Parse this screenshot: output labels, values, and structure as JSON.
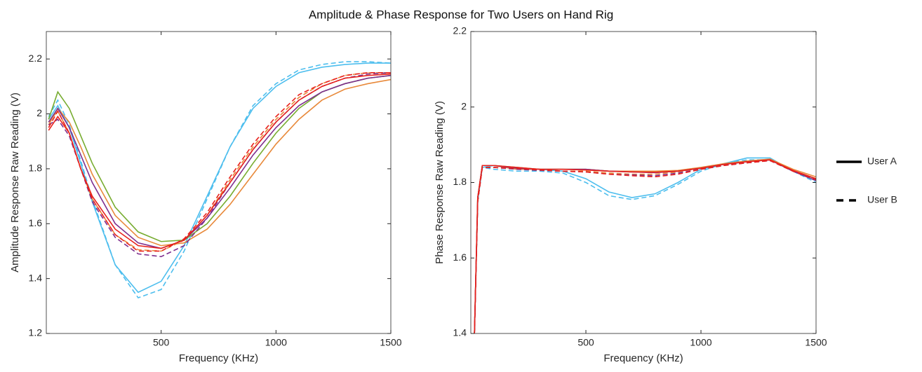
{
  "title": "Amplitude & Phase Response for Two Users on Hand Rig",
  "chart_data": [
    {
      "type": "line",
      "xlabel": "Frequency (KHz)",
      "ylabel": "Amplitude Response Raw Reading (V)",
      "xlim": [
        0,
        1500
      ],
      "ylim": [
        1.2,
        2.3
      ],
      "xticks": [
        500,
        1000,
        1500
      ],
      "yticks": [
        1.2,
        1.4,
        1.6,
        1.8,
        2,
        2.2
      ],
      "x": [
        10,
        50,
        100,
        150,
        200,
        300,
        400,
        500,
        600,
        700,
        800,
        900,
        1000,
        1100,
        1200,
        1300,
        1400,
        1500
      ],
      "series": [
        {
          "name": "User A",
          "dash": "solid",
          "color": "#4dbeee",
          "values": [
            1.98,
            2.03,
            1.95,
            1.82,
            1.68,
            1.45,
            1.35,
            1.39,
            1.52,
            1.7,
            1.88,
            2.02,
            2.1,
            2.15,
            2.17,
            2.18,
            2.185,
            2.185
          ]
        },
        {
          "name": "User B",
          "dash": "dashed",
          "color": "#4dbeee",
          "values": [
            1.99,
            2.05,
            1.96,
            1.83,
            1.69,
            1.45,
            1.33,
            1.36,
            1.5,
            1.69,
            1.88,
            2.03,
            2.11,
            2.16,
            2.18,
            2.19,
            2.19,
            2.185
          ]
        },
        {
          "name": "User A",
          "dash": "solid",
          "color": "#77ac30",
          "values": [
            1.98,
            2.08,
            2.02,
            1.92,
            1.82,
            1.66,
            1.57,
            1.535,
            1.54,
            1.6,
            1.7,
            1.82,
            1.93,
            2.02,
            2.08,
            2.11,
            2.13,
            2.14
          ]
        },
        {
          "name": "User A",
          "dash": "solid",
          "color": "#e8893a",
          "values": [
            1.96,
            2.02,
            1.97,
            1.88,
            1.78,
            1.63,
            1.55,
            1.52,
            1.53,
            1.58,
            1.67,
            1.78,
            1.89,
            1.98,
            2.05,
            2.09,
            2.11,
            2.125
          ]
        },
        {
          "name": "User B",
          "dash": "dashed",
          "color": "#e8893a",
          "values": [
            1.97,
            2.01,
            1.93,
            1.8,
            1.69,
            1.56,
            1.505,
            1.5,
            1.54,
            1.63,
            1.76,
            1.88,
            1.98,
            2.06,
            2.11,
            2.14,
            2.15,
            2.15
          ]
        },
        {
          "name": "User A",
          "dash": "solid",
          "color": "#7e2f8e",
          "values": [
            1.97,
            2.02,
            1.95,
            1.85,
            1.75,
            1.6,
            1.53,
            1.51,
            1.54,
            1.62,
            1.73,
            1.85,
            1.95,
            2.03,
            2.08,
            2.11,
            2.13,
            2.14
          ]
        },
        {
          "name": "User B",
          "dash": "dashed",
          "color": "#7e2f8e",
          "values": [
            1.96,
            1.98,
            1.92,
            1.8,
            1.68,
            1.55,
            1.49,
            1.48,
            1.52,
            1.62,
            1.75,
            1.87,
            1.97,
            2.05,
            2.1,
            2.13,
            2.145,
            2.15
          ]
        },
        {
          "name": "User A",
          "dash": "solid",
          "color": "#e8211c",
          "values": [
            1.94,
            1.99,
            1.93,
            1.8,
            1.7,
            1.58,
            1.52,
            1.51,
            1.54,
            1.63,
            1.75,
            1.87,
            1.97,
            2.05,
            2.1,
            2.13,
            2.14,
            2.145
          ]
        },
        {
          "name": "User B",
          "dash": "dashed",
          "color": "#e8211c",
          "values": [
            1.95,
            2.01,
            1.93,
            1.8,
            1.69,
            1.56,
            1.5,
            1.5,
            1.545,
            1.64,
            1.77,
            1.89,
            1.99,
            2.07,
            2.11,
            2.14,
            2.15,
            2.15
          ]
        }
      ]
    },
    {
      "type": "line",
      "xlabel": "Frequency (KHz)",
      "ylabel": "Phase Response Raw Reading (V)",
      "xlim": [
        0,
        1500
      ],
      "ylim": [
        1.4,
        2.2
      ],
      "xticks": [
        500,
        1000,
        1500
      ],
      "yticks": [
        1.4,
        1.6,
        1.8,
        2,
        2.2
      ],
      "x": [
        15,
        30,
        50,
        100,
        200,
        300,
        400,
        500,
        600,
        700,
        800,
        900,
        1000,
        1100,
        1200,
        1300,
        1400,
        1500
      ],
      "series": [
        {
          "name": "User A",
          "dash": "solid",
          "color": "#4dbeee",
          "values": [
            1.38,
            1.75,
            1.84,
            1.845,
            1.835,
            1.835,
            1.83,
            1.81,
            1.775,
            1.76,
            1.77,
            1.8,
            1.835,
            1.85,
            1.865,
            1.865,
            1.83,
            1.805
          ]
        },
        {
          "name": "User B",
          "dash": "dashed",
          "color": "#4dbeee",
          "values": [
            1.38,
            1.75,
            1.84,
            1.835,
            1.83,
            1.83,
            1.825,
            1.8,
            1.765,
            1.755,
            1.765,
            1.795,
            1.83,
            1.85,
            1.86,
            1.86,
            1.83,
            1.8
          ]
        },
        {
          "name": "User A",
          "dash": "solid",
          "color": "#77ac30",
          "values": [
            1.38,
            1.76,
            1.845,
            1.845,
            1.84,
            1.835,
            1.835,
            1.835,
            1.83,
            1.83,
            1.828,
            1.83,
            1.838,
            1.848,
            1.855,
            1.86,
            1.83,
            1.81
          ]
        },
        {
          "name": "User A",
          "dash": "solid",
          "color": "#e8893a",
          "values": [
            1.38,
            1.76,
            1.845,
            1.845,
            1.835,
            1.835,
            1.835,
            1.835,
            1.83,
            1.83,
            1.83,
            1.832,
            1.84,
            1.85,
            1.857,
            1.862,
            1.835,
            1.815
          ]
        },
        {
          "name": "User B",
          "dash": "dashed",
          "color": "#e8893a",
          "values": [
            1.38,
            1.75,
            1.84,
            1.84,
            1.835,
            1.835,
            1.83,
            1.83,
            1.825,
            1.822,
            1.822,
            1.828,
            1.838,
            1.848,
            1.855,
            1.86,
            1.83,
            1.81
          ]
        },
        {
          "name": "User A",
          "dash": "solid",
          "color": "#7e2f8e",
          "values": [
            1.38,
            1.76,
            1.845,
            1.845,
            1.838,
            1.835,
            1.835,
            1.835,
            1.83,
            1.828,
            1.826,
            1.83,
            1.838,
            1.848,
            1.855,
            1.86,
            1.83,
            1.805
          ]
        },
        {
          "name": "User B",
          "dash": "dashed",
          "color": "#7e2f8e",
          "values": [
            1.38,
            1.75,
            1.84,
            1.84,
            1.835,
            1.832,
            1.83,
            1.828,
            1.822,
            1.82,
            1.818,
            1.825,
            1.835,
            1.845,
            1.852,
            1.858,
            1.83,
            1.805
          ]
        },
        {
          "name": "User A",
          "dash": "solid",
          "color": "#e8211c",
          "values": [
            1.38,
            1.76,
            1.845,
            1.845,
            1.84,
            1.835,
            1.835,
            1.833,
            1.83,
            1.828,
            1.827,
            1.83,
            1.838,
            1.848,
            1.855,
            1.86,
            1.832,
            1.81
          ]
        },
        {
          "name": "User B",
          "dash": "dashed",
          "color": "#e8211c",
          "values": [
            1.38,
            1.75,
            1.84,
            1.84,
            1.837,
            1.833,
            1.83,
            1.828,
            1.822,
            1.818,
            1.815,
            1.822,
            1.835,
            1.845,
            1.852,
            1.858,
            1.83,
            1.808
          ]
        }
      ]
    }
  ]
}
